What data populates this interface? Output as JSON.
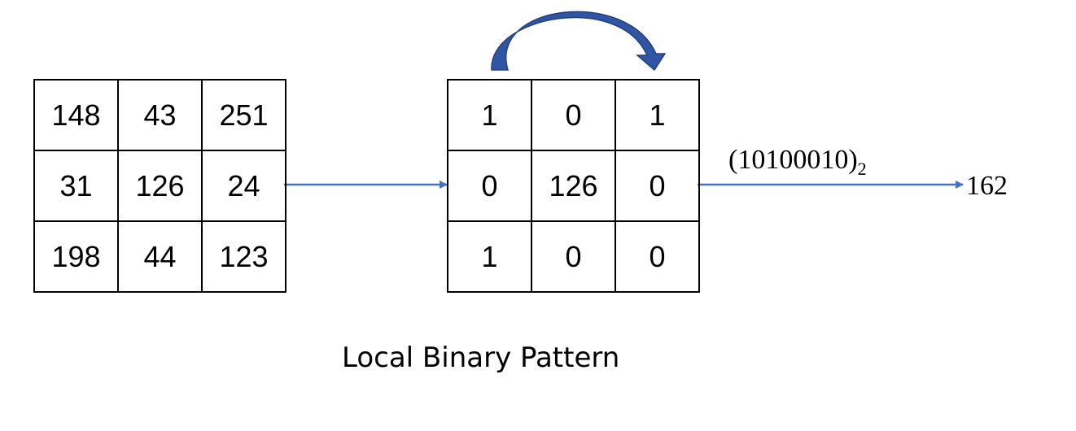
{
  "input_grid": [
    [
      "148",
      "43",
      "251"
    ],
    [
      "31",
      "126",
      "24"
    ],
    [
      "198",
      "44",
      "123"
    ]
  ],
  "binary_grid": [
    [
      "1",
      "0",
      "1"
    ],
    [
      "0",
      "126",
      "0"
    ],
    [
      "1",
      "0",
      "0"
    ]
  ],
  "binary_code": "(10100010)",
  "binary_base": "2",
  "decimal_result": "162",
  "caption": "Local Binary Pattern",
  "colors": {
    "arrow": "#4472C4",
    "curved_arrow_fill": "#2F55A4",
    "curved_arrow_stroke": "#23407D",
    "border": "#000000",
    "text": "#000000"
  }
}
